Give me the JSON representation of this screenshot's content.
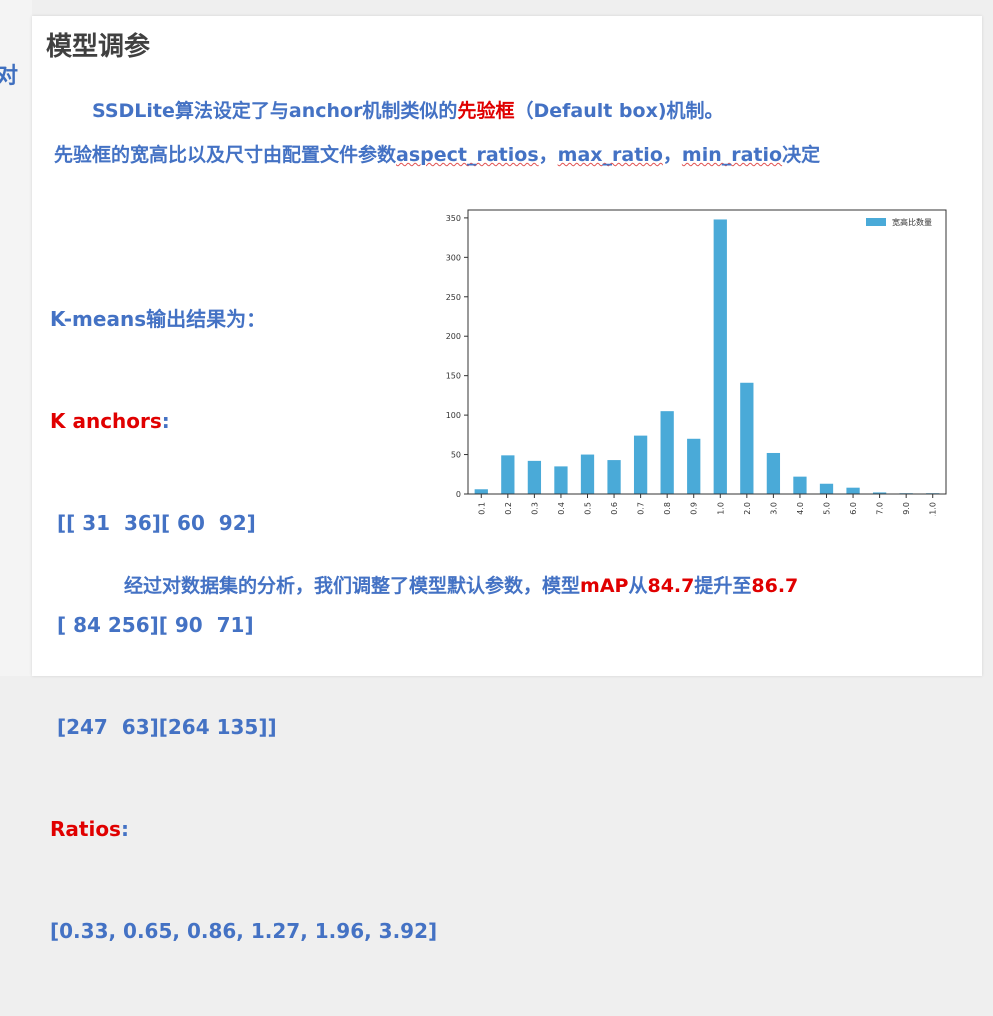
{
  "left_fragment": "对",
  "title": "模型调参",
  "line1": {
    "a": "SSDLite算法设定了与anchor机制类似的",
    "highlight": "先验框",
    "b": "（Default box)机制。"
  },
  "line2": {
    "a": "先验框的宽高比以及尺寸由配置文件参数",
    "p1": "aspect_ratios",
    "sep1": "，",
    "p2": "max_ratio",
    "sep2": "，",
    "p3": "min_ratio",
    "b": "决定"
  },
  "kmeans": {
    "header": "K-means输出结果为：",
    "anchors_label": "K anchors",
    "anchors_colon": ":",
    "anchor_rows": [
      " [[ 31  36][ 60  92]",
      " [ 84 256][ 90  71]",
      " [247  63][264 135]]"
    ],
    "ratios_label": "Ratios",
    "ratios_colon": ":",
    "ratios_value": "[0.33, 0.65, 0.86, 1.27, 1.96, 3.92]"
  },
  "conclusion": {
    "a": "经过对数据集的分析，我们调整了模型默认参数，模型",
    "metric": "mAP",
    "b": "从",
    "from": "84.7",
    "c": "提升至",
    "to": "86.7"
  },
  "colors": {
    "blue_text": "#4472c4",
    "red_text": "#e00000",
    "bar": "#4aaad8"
  },
  "chart_data": {
    "type": "bar",
    "categories": [
      "0.1",
      "0.2",
      "0.3",
      "0.4",
      "0.5",
      "0.6",
      "0.7",
      "0.8",
      "0.9",
      "1.0",
      "2.0",
      "3.0",
      "4.0",
      "5.0",
      "6.0",
      "7.0",
      "9.0",
      "11.0"
    ],
    "series": [
      {
        "name": "宽高比数量",
        "values": [
          6,
          49,
          42,
          35,
          50,
          43,
          74,
          105,
          70,
          348,
          141,
          52,
          22,
          13,
          8,
          2,
          1,
          1
        ]
      }
    ],
    "yticks": [
      0,
      50,
      100,
      150,
      200,
      250,
      300,
      350
    ],
    "ylim": [
      0,
      360
    ],
    "legend": "top-right",
    "grid": false
  }
}
